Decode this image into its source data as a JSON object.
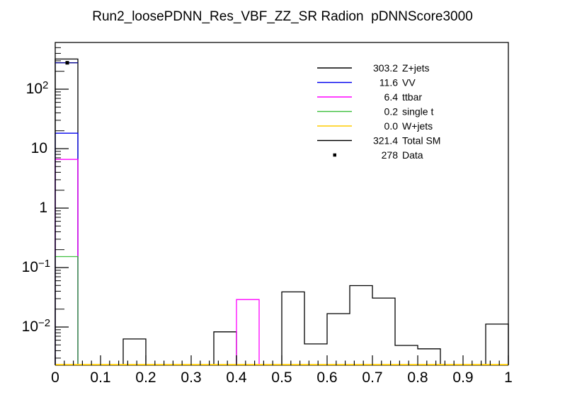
{
  "title": "Run2_loosePDNN_Res_VBF_ZZ_SR Radion  pDNNScore3000",
  "chart_data": {
    "type": "bar",
    "style": "ROOT-style unfilled step histogram, stacked outlines, logarithmic y-axis",
    "title": "Run2_loosePDNN_Res_VBF_ZZ_SR Radion  pDNNScore3000",
    "xlabel": "",
    "ylabel": "",
    "x_range": [
      0,
      1
    ],
    "y_range": [
      0.0023,
      610
    ],
    "y_scale": "log",
    "grid": false,
    "bin_width": 0.05,
    "x_bin_edges": [
      0,
      0.05,
      0.1,
      0.15,
      0.2,
      0.25,
      0.3,
      0.35,
      0.4,
      0.45,
      0.5,
      0.55,
      0.6,
      0.65,
      0.7,
      0.75,
      0.8,
      0.85,
      0.9,
      0.95,
      1.0
    ],
    "x_tick_labels": [
      "0",
      "0.1",
      "0.2",
      "0.3",
      "0.4",
      "0.5",
      "0.6",
      "0.7",
      "0.8",
      "0.9",
      "1"
    ],
    "x_minor_tick_step": 0.02,
    "y_ticks": [
      {
        "base": "10",
        "exp": "2",
        "value": 100
      },
      {
        "base": "10",
        "exp": "",
        "value": 10
      },
      {
        "base": "1",
        "exp": "",
        "value": 1
      },
      {
        "base": "10",
        "exp": "−1",
        "value": 0.1
      },
      {
        "base": "10",
        "exp": "−2",
        "value": 0.01
      }
    ],
    "series": [
      {
        "name": "Z+jets / Total SM (stack top)",
        "color": "#000000",
        "legend_yield_zjets": 303.2,
        "legend_yield_total_sm": 321.4,
        "values": [
          321.4,
          0,
          0,
          0.0063,
          0,
          0,
          0,
          0.0083,
          0,
          0,
          0.039,
          0.0052,
          0.0168,
          0.0497,
          0.0307,
          0.0049,
          0.0043,
          0,
          0,
          0.0112
        ]
      },
      {
        "name": "VV (stack top)",
        "color": "#0000ee",
        "legend_yield": 11.6,
        "values": [
          18.2,
          0,
          0,
          0,
          0,
          0,
          0,
          0,
          0,
          0,
          0,
          0,
          0,
          0,
          0,
          0,
          0,
          0,
          0,
          0
        ]
      },
      {
        "name": "ttbar (stack top)",
        "color": "#ff00ff",
        "legend_yield": 6.4,
        "values": [
          6.6,
          0,
          0,
          0,
          0,
          0,
          0,
          0,
          0.029,
          0,
          0,
          0,
          0,
          0,
          0,
          0,
          0,
          0,
          0,
          0
        ]
      },
      {
        "name": "single t (stack top)",
        "color": "#40c040",
        "legend_yield": 0.2,
        "values": [
          0.153,
          0,
          0,
          0,
          0,
          0,
          0,
          0,
          0,
          0,
          0,
          0,
          0,
          0,
          0,
          0,
          0,
          0,
          0,
          0
        ]
      },
      {
        "name": "W+jets",
        "color": "#ffcc00",
        "legend_yield": 0.0,
        "values": [
          0,
          0,
          0,
          0,
          0,
          0,
          0,
          0,
          0,
          0,
          0,
          0,
          0,
          0,
          0,
          0,
          0,
          0,
          0,
          0
        ]
      }
    ],
    "data_series": {
      "name": "Data",
      "legend_yield": 278,
      "marker": "small filled black square",
      "marker_color": "#000000",
      "bin_line_color": "#00008b",
      "points": [
        {
          "x": 0.025,
          "y": 278
        }
      ]
    }
  },
  "legend": {
    "entries": [
      {
        "value": "303.2",
        "label": "Z+jets",
        "color": "#000000",
        "type": "line"
      },
      {
        "value": "11.6",
        "label": "VV",
        "color": "#0000ee",
        "type": "line"
      },
      {
        "value": "6.4",
        "label": "ttbar",
        "color": "#ff00ff",
        "type": "line"
      },
      {
        "value": "0.2",
        "label": "single t",
        "color": "#40c040",
        "type": "line"
      },
      {
        "value": "0.0",
        "label": "W+jets",
        "color": "#ffcc00",
        "type": "line"
      },
      {
        "value": "321.4",
        "label": "Total SM",
        "color": "#000000",
        "type": "line"
      },
      {
        "value": "278",
        "label": "Data",
        "color": "#000000",
        "type": "marker"
      }
    ]
  }
}
